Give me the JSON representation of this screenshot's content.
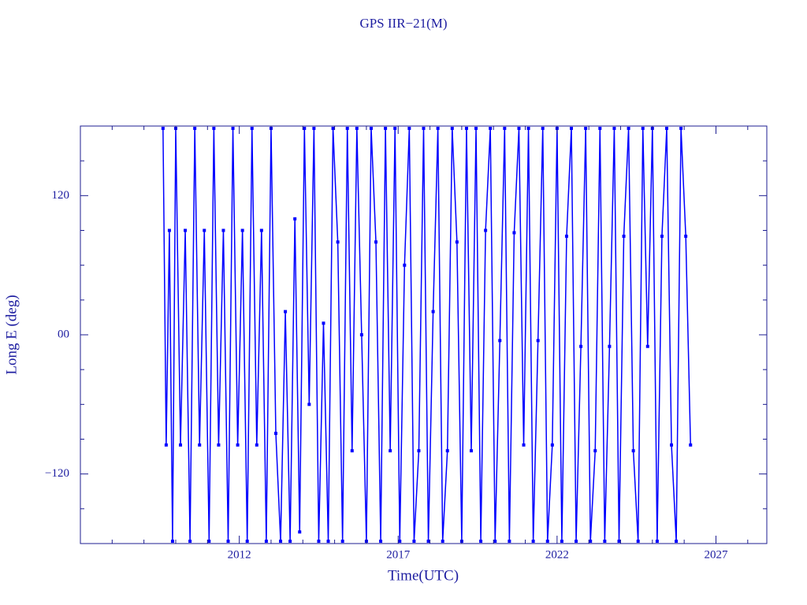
{
  "chart_data": {
    "type": "line",
    "title": "GPS IIR−21(M)",
    "x_label": "Time(UTC)",
    "y_label": "Long E (deg)",
    "xlim": [
      2007,
      2028.6
    ],
    "xticks": [
      2012,
      2017,
      2022,
      2027
    ],
    "xminorticks": [
      2008,
      2009,
      2010,
      2011,
      2013,
      2014,
      2015,
      2016,
      2018,
      2019,
      2020,
      2021,
      2023,
      2024,
      2025,
      2026,
      2028
    ],
    "ylim": [
      -180,
      180
    ],
    "yticks": [
      {
        "value": -120,
        "label": "−120"
      },
      {
        "value": 0,
        "label": "00"
      },
      120
    ],
    "yminorticks": [
      -150,
      -90,
      -60,
      -30,
      30,
      60,
      90,
      150
    ],
    "series": [
      {
        "color": "#0000ff",
        "x": [
          2009.6,
          2009.7,
          2009.8,
          2009.9,
          2010.0,
          2010.15,
          2010.3,
          2010.45,
          2010.6,
          2010.75,
          2010.9,
          2011.05,
          2011.2,
          2011.35,
          2011.5,
          2011.65,
          2011.8,
          2011.95,
          2012.1,
          2012.25,
          2012.4,
          2012.55,
          2012.7,
          2012.85,
          2013.0,
          2013.15,
          2013.3,
          2013.45,
          2013.6,
          2013.75,
          2013.9,
          2014.05,
          2014.2,
          2014.35,
          2014.5,
          2014.65,
          2014.8,
          2014.95,
          2015.1,
          2015.25,
          2015.4,
          2015.55,
          2015.7,
          2015.85,
          2016.0,
          2016.15,
          2016.3,
          2016.45,
          2016.6,
          2016.75,
          2016.9,
          2017.05,
          2017.2,
          2017.35,
          2017.5,
          2017.65,
          2017.8,
          2017.95,
          2018.1,
          2018.25,
          2018.4,
          2018.55,
          2018.7,
          2018.85,
          2019.0,
          2019.15,
          2019.3,
          2019.45,
          2019.6,
          2019.75,
          2019.9,
          2020.05,
          2020.2,
          2020.35,
          2020.5,
          2020.65,
          2020.8,
          2020.95,
          2021.1,
          2021.25,
          2021.4,
          2021.55,
          2021.7,
          2021.85,
          2022.0,
          2022.15,
          2022.3,
          2022.45,
          2022.6,
          2022.75,
          2022.9,
          2023.05,
          2023.2,
          2023.35,
          2023.5,
          2023.65,
          2023.8,
          2023.95,
          2024.1,
          2024.25,
          2024.4,
          2024.55,
          2024.7,
          2024.85,
          2025.0,
          2025.15,
          2025.3,
          2025.45,
          2025.6,
          2025.75,
          2025.9,
          2026.05,
          2026.2
        ],
        "values": [
          178,
          -95,
          90,
          -178,
          178,
          -95,
          90,
          -178,
          178,
          -95,
          90,
          -178,
          178,
          -95,
          90,
          -178,
          178,
          -95,
          90,
          -178,
          178,
          -95,
          90,
          -178,
          178,
          -85,
          -178,
          20,
          -178,
          100,
          -170,
          178,
          -60,
          178,
          -178,
          10,
          -178,
          178,
          80,
          -178,
          178,
          -100,
          178,
          0,
          -178,
          178,
          80,
          -178,
          178,
          -100,
          178,
          -178,
          60,
          178,
          -178,
          -100,
          178,
          -178,
          20,
          178,
          -178,
          -100,
          178,
          80,
          -178,
          178,
          -100,
          178,
          -178,
          90,
          178,
          -178,
          -5,
          178,
          -178,
          88,
          178,
          -95,
          178,
          -178,
          -5,
          178,
          -178,
          -95,
          178,
          -178,
          85,
          178,
          -178,
          -10,
          178,
          -178,
          -100,
          178,
          -178,
          -10,
          178,
          -178,
          85,
          178,
          -100,
          -178,
          178,
          -10,
          178,
          -178,
          85,
          178,
          -95,
          -178,
          178,
          85,
          -95
        ]
      }
    ]
  }
}
